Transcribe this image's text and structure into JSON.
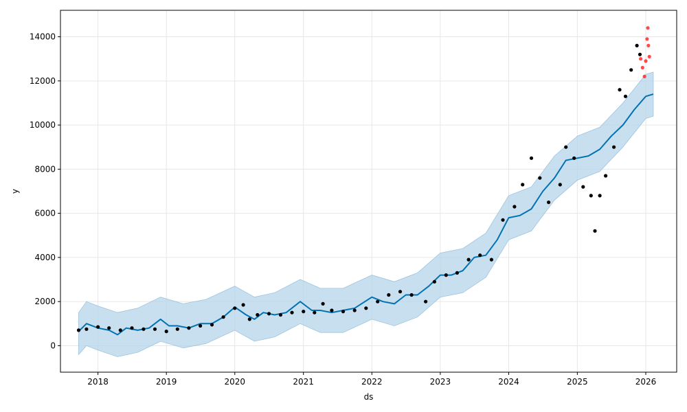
{
  "chart_data": {
    "type": "line",
    "title": "",
    "xlabel": "ds",
    "ylabel": "y",
    "x_range": [
      "2017-06-15",
      "2026-06-15"
    ],
    "ylim": [
      -1200,
      15200
    ],
    "x_ticks": [
      "2018",
      "2019",
      "2020",
      "2021",
      "2022",
      "2023",
      "2024",
      "2025",
      "2026"
    ],
    "y_ticks": [
      0,
      2000,
      4000,
      6000,
      8000,
      10000,
      12000,
      14000
    ],
    "grid": true,
    "colors": {
      "forecast_line": "#0072B2",
      "uncertainty_band": "#B5D4E9",
      "observed_points": "#000000",
      "recent_points": "#FF2A2A",
      "grid": "#e6e6e6"
    },
    "series": [
      {
        "role": "forecast",
        "points": [
          [
            "2017-09-20",
            650
          ],
          [
            "2017-11-01",
            1000
          ],
          [
            "2018-01-01",
            800
          ],
          [
            "2018-03-01",
            700
          ],
          [
            "2018-04-15",
            500
          ],
          [
            "2018-06-01",
            800
          ],
          [
            "2018-08-01",
            700
          ],
          [
            "2018-10-01",
            800
          ],
          [
            "2018-12-01",
            1200
          ],
          [
            "2019-01-15",
            900
          ],
          [
            "2019-03-01",
            900
          ],
          [
            "2019-05-01",
            800
          ],
          [
            "2019-07-01",
            1000
          ],
          [
            "2019-09-01",
            1000
          ],
          [
            "2019-11-01",
            1300
          ],
          [
            "2020-01-01",
            1750
          ],
          [
            "2020-03-01",
            1400
          ],
          [
            "2020-04-15",
            1200
          ],
          [
            "2020-06-01",
            1500
          ],
          [
            "2020-08-01",
            1400
          ],
          [
            "2020-10-01",
            1500
          ],
          [
            "2020-12-15",
            2000
          ],
          [
            "2021-02-15",
            1600
          ],
          [
            "2021-04-01",
            1600
          ],
          [
            "2021-06-01",
            1500
          ],
          [
            "2021-08-01",
            1600
          ],
          [
            "2021-10-01",
            1700
          ],
          [
            "2022-01-01",
            2200
          ],
          [
            "2022-03-01",
            2000
          ],
          [
            "2022-05-01",
            1900
          ],
          [
            "2022-07-01",
            2300
          ],
          [
            "2022-09-01",
            2300
          ],
          [
            "2022-11-01",
            2700
          ],
          [
            "2023-01-01",
            3200
          ],
          [
            "2023-03-01",
            3200
          ],
          [
            "2023-05-01",
            3400
          ],
          [
            "2023-07-01",
            4000
          ],
          [
            "2023-09-01",
            4100
          ],
          [
            "2023-11-01",
            4800
          ],
          [
            "2024-01-01",
            5800
          ],
          [
            "2024-03-01",
            5900
          ],
          [
            "2024-05-01",
            6200
          ],
          [
            "2024-07-01",
            7000
          ],
          [
            "2024-09-01",
            7600
          ],
          [
            "2024-11-01",
            8400
          ],
          [
            "2025-01-01",
            8500
          ],
          [
            "2025-03-01",
            8600
          ],
          [
            "2025-05-01",
            8900
          ],
          [
            "2025-07-01",
            9500
          ],
          [
            "2025-09-01",
            10000
          ],
          [
            "2025-11-01",
            10700
          ],
          [
            "2026-01-01",
            11300
          ],
          [
            "2026-02-10",
            11400
          ]
        ],
        "band": [
          [
            "2017-09-20",
            -400,
            1500
          ],
          [
            "2017-11-01",
            0,
            2000
          ],
          [
            "2018-01-01",
            -200,
            1800
          ],
          [
            "2018-04-15",
            -500,
            1500
          ],
          [
            "2018-08-01",
            -300,
            1700
          ],
          [
            "2018-12-01",
            200,
            2200
          ],
          [
            "2019-04-01",
            -100,
            1900
          ],
          [
            "2019-08-01",
            100,
            2100
          ],
          [
            "2020-01-01",
            700,
            2700
          ],
          [
            "2020-04-15",
            200,
            2200
          ],
          [
            "2020-08-01",
            400,
            2400
          ],
          [
            "2020-12-15",
            1000,
            3000
          ],
          [
            "2021-04-01",
            600,
            2600
          ],
          [
            "2021-08-01",
            600,
            2600
          ],
          [
            "2022-01-01",
            1200,
            3200
          ],
          [
            "2022-05-01",
            900,
            2900
          ],
          [
            "2022-09-01",
            1300,
            3300
          ],
          [
            "2023-01-01",
            2200,
            4200
          ],
          [
            "2023-05-01",
            2400,
            4400
          ],
          [
            "2023-09-01",
            3100,
            5100
          ],
          [
            "2024-01-01",
            4800,
            6800
          ],
          [
            "2024-05-01",
            5200,
            7200
          ],
          [
            "2024-09-01",
            6600,
            8600
          ],
          [
            "2025-01-01",
            7500,
            9500
          ],
          [
            "2025-05-01",
            7900,
            9900
          ],
          [
            "2025-09-01",
            9000,
            11000
          ],
          [
            "2026-01-01",
            10300,
            12300
          ],
          [
            "2026-02-10",
            10400,
            12400
          ]
        ]
      },
      {
        "role": "observed",
        "points": [
          [
            "2017-09-20",
            700
          ],
          [
            "2017-11-01",
            750
          ],
          [
            "2018-01-01",
            850
          ],
          [
            "2018-03-01",
            800
          ],
          [
            "2018-05-01",
            700
          ],
          [
            "2018-07-01",
            800
          ],
          [
            "2018-09-01",
            750
          ],
          [
            "2018-11-01",
            750
          ],
          [
            "2019-01-01",
            650
          ],
          [
            "2019-03-01",
            750
          ],
          [
            "2019-05-01",
            800
          ],
          [
            "2019-07-01",
            900
          ],
          [
            "2019-09-01",
            950
          ],
          [
            "2019-11-01",
            1300
          ],
          [
            "2020-01-01",
            1700
          ],
          [
            "2020-02-15",
            1850
          ],
          [
            "2020-03-20",
            1200
          ],
          [
            "2020-05-01",
            1400
          ],
          [
            "2020-07-01",
            1450
          ],
          [
            "2020-09-01",
            1400
          ],
          [
            "2020-11-01",
            1500
          ],
          [
            "2021-01-01",
            1550
          ],
          [
            "2021-03-01",
            1500
          ],
          [
            "2021-04-15",
            1900
          ],
          [
            "2021-06-01",
            1600
          ],
          [
            "2021-08-01",
            1550
          ],
          [
            "2021-10-01",
            1600
          ],
          [
            "2021-12-01",
            1700
          ],
          [
            "2022-02-01",
            2000
          ],
          [
            "2022-04-01",
            2300
          ],
          [
            "2022-06-01",
            2450
          ],
          [
            "2022-08-01",
            2300
          ],
          [
            "2022-10-15",
            2000
          ],
          [
            "2022-12-01",
            2900
          ],
          [
            "2023-02-01",
            3200
          ],
          [
            "2023-04-01",
            3300
          ],
          [
            "2023-06-01",
            3900
          ],
          [
            "2023-08-01",
            4100
          ],
          [
            "2023-10-01",
            3900
          ],
          [
            "2023-12-01",
            5700
          ],
          [
            "2024-02-01",
            6300
          ],
          [
            "2024-03-15",
            7300
          ],
          [
            "2024-05-01",
            8500
          ],
          [
            "2024-06-15",
            7600
          ],
          [
            "2024-08-01",
            6500
          ],
          [
            "2024-10-01",
            7300
          ],
          [
            "2024-11-01",
            9000
          ],
          [
            "2024-12-15",
            8500
          ],
          [
            "2025-02-01",
            7200
          ],
          [
            "2025-03-15",
            6800
          ],
          [
            "2025-04-05",
            5200
          ],
          [
            "2025-05-01",
            6800
          ],
          [
            "2025-06-01",
            7700
          ],
          [
            "2025-07-15",
            9000
          ],
          [
            "2025-08-15",
            11600
          ],
          [
            "2025-09-15",
            11300
          ],
          [
            "2025-10-15",
            12500
          ],
          [
            "2025-11-15",
            13600
          ],
          [
            "2025-12-01",
            13200
          ]
        ]
      },
      {
        "role": "recent",
        "points": [
          [
            "2025-12-05",
            13000
          ],
          [
            "2025-12-15",
            12600
          ],
          [
            "2025-12-25",
            12200
          ],
          [
            "2026-01-01",
            12900
          ],
          [
            "2026-01-08",
            13900
          ],
          [
            "2026-01-12",
            14400
          ],
          [
            "2026-01-15",
            13600
          ],
          [
            "2026-01-20",
            13100
          ]
        ]
      }
    ]
  }
}
